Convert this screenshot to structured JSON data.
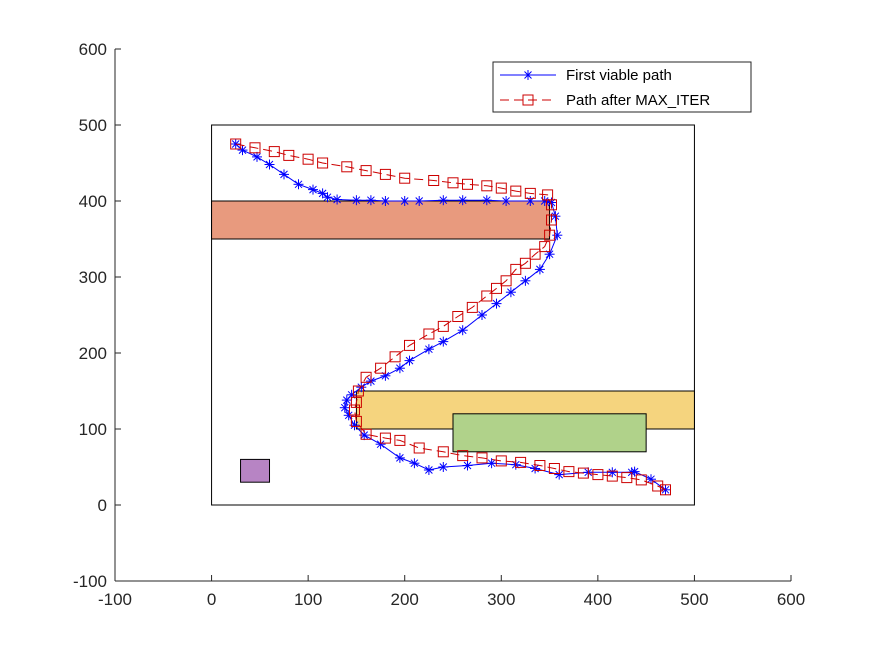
{
  "chart_data": {
    "type": "line",
    "xlim": [
      -100,
      600
    ],
    "ylim": [
      -100,
      600
    ],
    "xticks": [
      "-100",
      "0",
      "100",
      "200",
      "300",
      "400",
      "500",
      "600"
    ],
    "yticks": [
      "-100",
      "0",
      "100",
      "200",
      "300",
      "400",
      "500",
      "600"
    ],
    "grid": false,
    "legend_position": "top-right",
    "colors": {
      "axis": "#262626",
      "series1": "#0000ff",
      "series2": "#cc0000",
      "obstacle_red": "#e89a7e",
      "obstacle_yellow": "#f5d47e",
      "obstacle_green": "#b0d28a",
      "obstacle_purple": "#b784c4"
    },
    "boundary": {
      "x0": 0,
      "y0": 0,
      "x1": 500,
      "y1": 500
    },
    "obstacles": [
      {
        "name": "obstacle-red",
        "x0": 0,
        "y0": 350,
        "x1": 350,
        "y1": 400,
        "color": "#e89a7e"
      },
      {
        "name": "obstacle-yellow",
        "x0": 150,
        "y0": 100,
        "x1": 500,
        "y1": 150,
        "color": "#f5d47e"
      },
      {
        "name": "obstacle-green",
        "x0": 250,
        "y0": 70,
        "x1": 450,
        "y1": 120,
        "color": "#b0d28a"
      },
      {
        "name": "obstacle-purple",
        "x0": 30,
        "y0": 30,
        "x1": 60,
        "y1": 60,
        "color": "#b784c4"
      }
    ],
    "series": [
      {
        "name": "First viable path",
        "marker": "asterisk",
        "line": "solid",
        "color": "#0000ff",
        "x": [
          25,
          32,
          47,
          60,
          75,
          90,
          105,
          115,
          120,
          130,
          150,
          165,
          180,
          200,
          215,
          240,
          260,
          285,
          305,
          330,
          345,
          352,
          356,
          358,
          350,
          340,
          325,
          310,
          295,
          280,
          260,
          240,
          225,
          205,
          195,
          180,
          165,
          155,
          145,
          140,
          138,
          142,
          148,
          158,
          175,
          195,
          210,
          225,
          240,
          265,
          290,
          315,
          335,
          360,
          390,
          415,
          435,
          438,
          455,
          470
        ],
        "y": [
          475,
          467,
          458,
          448,
          435,
          422,
          415,
          410,
          405,
          402,
          401,
          401,
          400,
          400,
          400,
          401,
          401,
          401,
          400,
          400,
          400,
          398,
          380,
          355,
          330,
          310,
          295,
          280,
          265,
          250,
          230,
          215,
          205,
          190,
          180,
          170,
          163,
          155,
          145,
          138,
          128,
          118,
          105,
          92,
          80,
          62,
          55,
          46,
          50,
          52,
          55,
          53,
          48,
          40,
          43,
          43,
          43,
          44,
          34,
          20
        ]
      },
      {
        "name": "Path after MAX_ITER",
        "marker": "square",
        "line": "dashed",
        "color": "#cc0000",
        "x": [
          25,
          45,
          65,
          80,
          100,
          115,
          140,
          160,
          180,
          200,
          230,
          250,
          265,
          285,
          300,
          315,
          330,
          348,
          352,
          352,
          350,
          345,
          335,
          325,
          315,
          305,
          295,
          285,
          270,
          255,
          240,
          225,
          205,
          190,
          175,
          160,
          152,
          150,
          148,
          150,
          160,
          180,
          195,
          215,
          240,
          260,
          280,
          300,
          320,
          340,
          355,
          370,
          385,
          400,
          415,
          430,
          445,
          462,
          470
        ],
        "y": [
          475,
          470,
          465,
          460,
          455,
          450,
          445,
          440,
          435,
          430,
          427,
          424,
          422,
          420,
          417,
          413,
          410,
          408,
          395,
          375,
          355,
          340,
          330,
          318,
          310,
          295,
          285,
          275,
          260,
          248,
          235,
          225,
          210,
          195,
          180,
          168,
          150,
          135,
          125,
          110,
          93,
          88,
          85,
          75,
          70,
          65,
          62,
          58,
          56,
          52,
          48,
          44,
          42,
          40,
          38,
          36,
          33,
          25,
          20
        ]
      }
    ]
  }
}
